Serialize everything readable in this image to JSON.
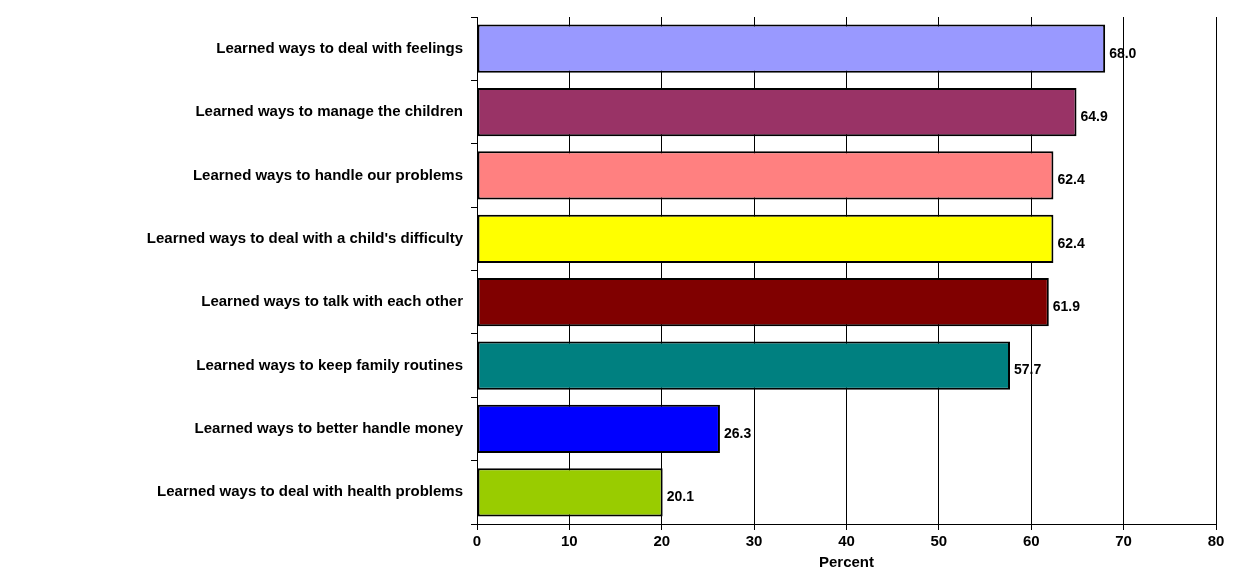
{
  "chart_data": {
    "type": "bar",
    "orientation": "horizontal",
    "xlabel": "Percent",
    "categories": [
      "Learned ways to deal with feelings",
      "Learned ways to manage the children",
      "Learned ways to handle our problems",
      "Learned ways to deal with a child's difficulty",
      "Learned ways to talk with each other",
      "Learned ways to keep family routines",
      "Learned ways to better handle money",
      "Learned ways to deal with health problems"
    ],
    "values": [
      68.0,
      64.9,
      62.4,
      62.4,
      61.9,
      57.7,
      26.3,
      20.1
    ],
    "value_labels": [
      "68.0",
      "64.9",
      "62.4",
      "62.4",
      "61.9",
      "57.7",
      "26.3",
      "20.1"
    ],
    "colors": [
      "#9999ff",
      "#993366",
      "#ff8080",
      "#ffff00",
      "#800000",
      "#008080",
      "#0000ff",
      "#99cc00"
    ],
    "xlim": [
      0,
      80
    ],
    "xticks": [
      0,
      10,
      20,
      30,
      40,
      50,
      60,
      70,
      80
    ],
    "grid": "x",
    "legend": false
  }
}
